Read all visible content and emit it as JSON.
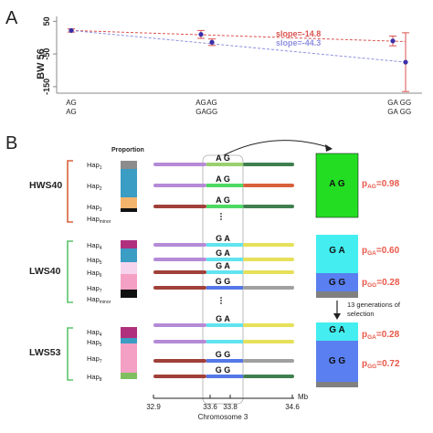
{
  "panel_a": {
    "label": "A",
    "ylabel": "BW 56",
    "yticks": [
      "50",
      "-50",
      "-150"
    ],
    "chart_data": {
      "type": "scatter",
      "ylabel": "BW 56",
      "ylim": [
        -170,
        65
      ],
      "yticks": [
        50,
        -50,
        -150
      ],
      "x_positions": [
        32.9,
        33.6,
        33.8,
        34.6
      ],
      "x_groups": [
        {
          "x": 32.9,
          "lines": [
            "AG",
            "AG"
          ]
        },
        {
          "x": 33.6,
          "lines": [
            "AG",
            "GA"
          ]
        },
        {
          "x": 33.8,
          "lines": [
            "AG",
            "GG"
          ]
        },
        {
          "x": 34.4,
          "lines": [
            "GA",
            "GA"
          ]
        },
        {
          "x": 34.6,
          "lines": [
            "GG",
            "GG"
          ]
        }
      ],
      "series": [
        {
          "color": "#d9534f",
          "points": [
            {
              "x": 32.9,
              "y": 22,
              "err": 5
            },
            {
              "x": 33.6,
              "y": 10,
              "err": 12
            },
            {
              "x": 34.4,
              "y": -10,
              "err": 15
            }
          ]
        },
        {
          "color": "#7b7bdb",
          "points": [
            {
              "x": 33.8,
              "y": -14,
              "err": 10
            },
            {
              "x": 34.6,
              "y": -75,
              "err": 90
            }
          ]
        }
      ],
      "trend_lines": [
        {
          "label": "slope=-14.8",
          "color": "#d9534f",
          "from": [
            32.9,
            22
          ],
          "to": [
            34.6,
            -12
          ]
        },
        {
          "label": "slope=-44.3",
          "color": "#8f8fe0",
          "from": [
            32.9,
            22
          ],
          "to": [
            34.6,
            -75
          ]
        }
      ]
    }
  },
  "panel_b": {
    "label": "B",
    "proportion_label": "Proportion",
    "axis": {
      "unit": "Mb",
      "caption": "Chromosome 3",
      "ticks": [
        "32.9",
        "33.6",
        "33.8",
        "34.6"
      ]
    },
    "groups": [
      {
        "name": "HWS40",
        "bracket_color": "#d9603b",
        "haplotypes": [
          {
            "base": "Hap",
            "sub": "1",
            "alleles": "A  G",
            "color": "#8c8c8c",
            "mid": "#9ad06e",
            "right": "#3f7f4f",
            "left": "#b58ad6"
          },
          {
            "base": "Hap",
            "sub": "2",
            "alleles": "A  G",
            "color": "#3b9cc4",
            "mid": "#4cd964",
            "right": "#d9603b",
            "left": "#b58ad6"
          },
          {
            "base": "Hap",
            "sub": "3",
            "alleles": "A  G",
            "color": "#f5b46b",
            "mid": "#4cd964",
            "right": "#3f7f4f",
            "left": "#a0403a"
          },
          {
            "base": "Hap",
            "sub": "minor",
            "alleles": "",
            "color": "#111111"
          }
        ]
      },
      {
        "name": "LWS40",
        "bracket_color": "#5cc46a",
        "haplotypes": [
          {
            "base": "Hap",
            "sub": "4",
            "alleles": "G  A",
            "color": "#b0307e",
            "mid": "#62e3f0",
            "right": "#e6e05a",
            "left": "#b58ad6"
          },
          {
            "base": "Hap",
            "sub": "5",
            "alleles": "G  A",
            "color": "#3b9cc4",
            "mid": "#62e3f0",
            "right": "#e6e05a",
            "left": "#b58ad6"
          },
          {
            "base": "Hap",
            "sub": "6",
            "alleles": "G  A",
            "color": "#f6d4ee",
            "mid": "#62e3f0",
            "right": "#e6e05a",
            "left": "#a0403a"
          },
          {
            "base": "Hap",
            "sub": "7",
            "alleles": "G  G",
            "color": "#f3a0c4",
            "mid": "#5577e8",
            "right": "#a0a0a0",
            "left": "#a0403a"
          },
          {
            "base": "Hap",
            "sub": "minor",
            "alleles": "",
            "color": "#111111"
          }
        ]
      },
      {
        "name": "LWS53",
        "bracket_color": "#5cc46a",
        "haplotypes": [
          {
            "base": "Hap",
            "sub": "4",
            "alleles": "G  A",
            "color": "#b0307e",
            "mid": "#62e3f0",
            "right": "#e6e05a",
            "left": "#b58ad6"
          },
          {
            "base": "Hap",
            "sub": "5",
            "alleles": "",
            "color": "#3b9cc4",
            "mid": "#62e3f0",
            "right": "#e6e05a",
            "left": "#b58ad6"
          },
          {
            "base": "Hap",
            "sub": "7",
            "alleles": "G  G",
            "color": "#f3a0c4",
            "mid": "#5577e8",
            "right": "#a0a0a0",
            "left": "#a0403a"
          },
          {
            "base": "Hap",
            "sub": "8",
            "alleles": "G  G",
            "color": "#7fbf5f",
            "mid": "#5577e8",
            "right": "#3f7f4f",
            "left": "#a0403a"
          }
        ]
      }
    ],
    "boxes": [
      {
        "alleles": "A  G",
        "p_label": "p",
        "p_sub": "AG",
        "p_value": "=0.98"
      },
      {
        "alleles": "G  A",
        "p_label": "p",
        "p_sub": "GA",
        "p_value": "=0.60"
      },
      {
        "alleles": "G  G",
        "p_label": "p",
        "p_sub": "GG",
        "p_value": "=0.28"
      },
      {
        "alleles": "G  A",
        "p_label": "p",
        "p_sub": "GA",
        "p_value": "=0.28"
      },
      {
        "alleles": "G  G",
        "p_label": "p",
        "p_sub": "GG",
        "p_value": "=0.72"
      }
    ],
    "selection_note": [
      "13 generations of",
      "selection"
    ],
    "colors": {
      "box_green": "#22dd22",
      "box_cyan": "#44eef0",
      "box_blue": "#5a7ff0",
      "box_gray": "#808080",
      "p_text": "#e8584a"
    }
  }
}
